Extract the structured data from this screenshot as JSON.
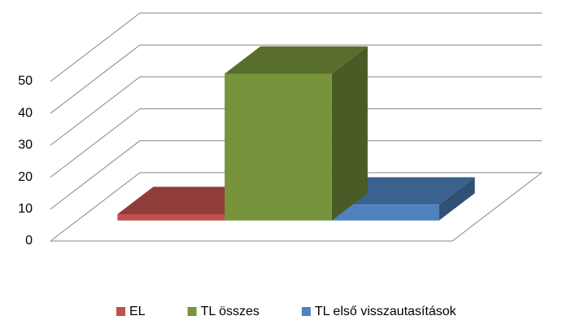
{
  "chart_data": {
    "type": "bar3d",
    "categories": [
      null
    ],
    "series": [
      {
        "name": "EL",
        "color": "#c0504d",
        "values": [
          2
        ]
      },
      {
        "name": "TL összes",
        "color": "#77933c",
        "values": [
          46
        ]
      },
      {
        "name": "TL első visszautasítások",
        "color": "#4f81bd",
        "values": [
          5
        ]
      }
    ],
    "ylim": [
      0,
      50
    ],
    "yticks": [
      0,
      10,
      20,
      30,
      40,
      50
    ],
    "grid": true,
    "legend": "bottom"
  }
}
